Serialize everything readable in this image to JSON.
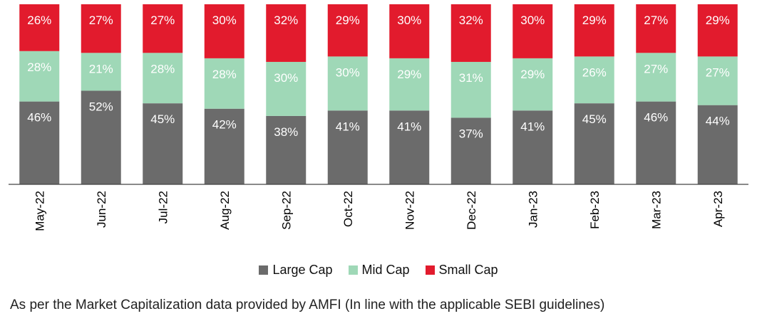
{
  "chart_data": {
    "type": "bar",
    "stacked": true,
    "normalized": true,
    "categories": [
      "May-22",
      "Jun-22",
      "Jul-22",
      "Aug-22",
      "Sep-22",
      "Oct-22",
      "Nov-22",
      "Dec-22",
      "Jan-23",
      "Feb-23",
      "Mar-23",
      "Apr-23"
    ],
    "series": [
      {
        "name": "Large Cap",
        "color": "#6b6b6b",
        "values": [
          46,
          52,
          45,
          42,
          38,
          41,
          41,
          37,
          41,
          45,
          46,
          44
        ]
      },
      {
        "name": "Mid Cap",
        "color": "#9fd8b7",
        "values": [
          28,
          21,
          28,
          28,
          30,
          30,
          29,
          31,
          29,
          26,
          27,
          27
        ]
      },
      {
        "name": "Small Cap",
        "color": "#e21b2d",
        "values": [
          26,
          27,
          27,
          30,
          32,
          29,
          30,
          32,
          30,
          29,
          27,
          29
        ]
      }
    ],
    "value_suffix": "%",
    "ylim": [
      0,
      100
    ],
    "grid": false,
    "legend_position": "bottom"
  },
  "footnote": "As per the Market Capitalization data provided by AMFI (In line with the applicable SEBI guidelines)"
}
